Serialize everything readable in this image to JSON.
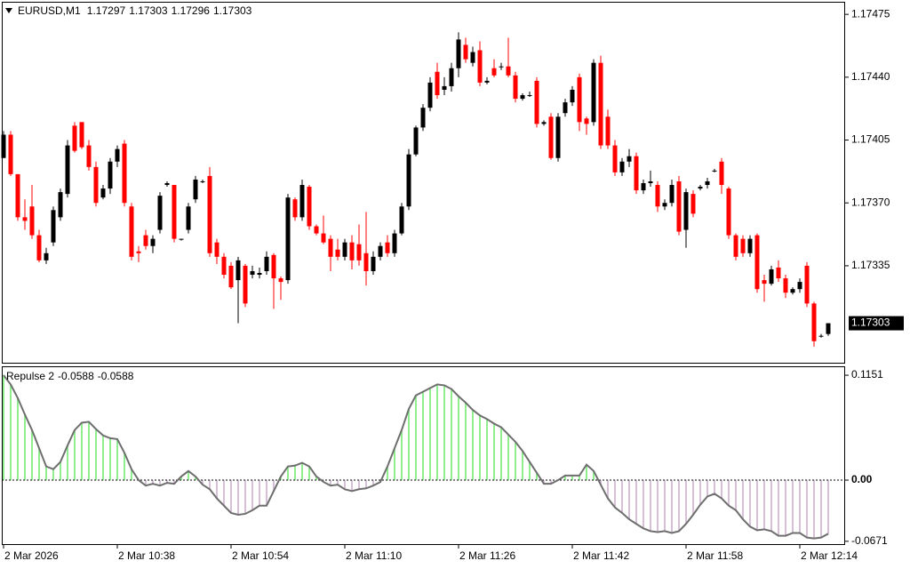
{
  "chart_data": [
    {
      "type": "candlestick",
      "symbol": "EURUSD,M1",
      "header_values": [
        1.17297,
        1.17303,
        1.17296,
        1.17303
      ],
      "bull_color": "#000000",
      "bear_color": "#ff0000",
      "current_price": 1.17303,
      "ylim": [
        1.17281,
        1.17482
      ],
      "yticks": [
        {
          "value": 1.17475,
          "label": "1.17475"
        },
        {
          "value": 1.1744,
          "label": "1.17440"
        },
        {
          "value": 1.17405,
          "label": "1.17405"
        },
        {
          "value": 1.1737,
          "label": "1.17370"
        },
        {
          "value": 1.17335,
          "label": "1.17335"
        }
      ],
      "xticks": [
        {
          "value": 0,
          "label": "2 Mar 2026"
        },
        {
          "value": 16,
          "label": "2 Mar 10:38"
        },
        {
          "value": 32,
          "label": "2 Mar 10:54"
        },
        {
          "value": 48,
          "label": "2 Mar 11:10"
        },
        {
          "value": 64,
          "label": "2 Mar 11:26"
        },
        {
          "value": 80,
          "label": "2 Mar 11:42"
        },
        {
          "value": 96,
          "label": "2 Mar 11:58"
        },
        {
          "value": 112,
          "label": "2 Mar 12:14"
        }
      ],
      "ohlc": [
        [
          1.17395,
          1.1741,
          1.17395,
          1.17408
        ],
        [
          1.17408,
          1.1741,
          1.17385,
          1.17386
        ],
        [
          1.17386,
          1.17386,
          1.1736,
          1.17362
        ],
        [
          1.17362,
          1.17372,
          1.17355,
          1.1736
        ],
        [
          1.17368,
          1.1738,
          1.1735,
          1.17352
        ],
        [
          1.17352,
          1.17355,
          1.17337,
          1.17338
        ],
        [
          1.17338,
          1.17345,
          1.17336,
          1.17342
        ],
        [
          1.17348,
          1.17368,
          1.17346,
          1.17366
        ],
        [
          1.17362,
          1.17378,
          1.1736,
          1.17376
        ],
        [
          1.17375,
          1.17405,
          1.17373,
          1.17402
        ],
        [
          1.17413,
          1.17415,
          1.17398,
          1.17399
        ],
        [
          1.17415,
          1.17415,
          1.174,
          1.17401
        ],
        [
          1.17402,
          1.17405,
          1.17388,
          1.1739
        ],
        [
          1.1739,
          1.17393,
          1.17368,
          1.1737
        ],
        [
          1.17373,
          1.1738,
          1.17372,
          1.17378
        ],
        [
          1.17378,
          1.17395,
          1.17375,
          1.17393
        ],
        [
          1.17393,
          1.17402,
          1.1739,
          1.174
        ],
        [
          1.17403,
          1.17405,
          1.17368,
          1.1737
        ],
        [
          1.17368,
          1.1737,
          1.17338,
          1.1734
        ],
        [
          1.17343,
          1.17346,
          1.17337,
          1.17342
        ],
        [
          1.17352,
          1.17355,
          1.17344,
          1.17346
        ],
        [
          1.17346,
          1.17352,
          1.17342,
          1.1735
        ],
        [
          1.17355,
          1.17376,
          1.17353,
          1.17374
        ],
        [
          1.1738,
          1.17382,
          1.17379,
          1.17381
        ],
        [
          1.1738,
          1.1738,
          1.17348,
          1.1735
        ],
        [
          1.1735,
          1.1735,
          1.17349,
          1.1735
        ],
        [
          1.17355,
          1.1737,
          1.17353,
          1.17368
        ],
        [
          1.17372,
          1.17385,
          1.1737,
          1.17383
        ],
        [
          1.17382,
          1.17383,
          1.17381,
          1.17382
        ],
        [
          1.17385,
          1.1739,
          1.1734,
          1.17342
        ],
        [
          1.17348,
          1.1735,
          1.17336,
          1.1734
        ],
        [
          1.1734,
          1.17342,
          1.17328,
          1.1733
        ],
        [
          1.17335,
          1.17337,
          1.17322,
          1.17323
        ],
        [
          1.17327,
          1.1734,
          1.17303,
          1.17338
        ],
        [
          1.17335,
          1.17336,
          1.17312,
          1.17314
        ],
        [
          1.1733,
          1.17335,
          1.17328,
          1.17332
        ],
        [
          1.1733,
          1.17334,
          1.17328,
          1.17331
        ],
        [
          1.17332,
          1.17343,
          1.1733,
          1.1734
        ],
        [
          1.17341,
          1.17342,
          1.17311,
          1.17328
        ],
        [
          1.17328,
          1.17329,
          1.17316,
          1.17326
        ],
        [
          1.17327,
          1.17375,
          1.17325,
          1.17373
        ],
        [
          1.17372,
          1.17373,
          1.1736,
          1.17362
        ],
        [
          1.17362,
          1.17383,
          1.1736,
          1.1738
        ],
        [
          1.17379,
          1.1738,
          1.17355,
          1.17357
        ],
        [
          1.17357,
          1.17358,
          1.17352,
          1.17353
        ],
        [
          1.17353,
          1.17363,
          1.17347,
          1.17348
        ],
        [
          1.1735,
          1.17352,
          1.17332,
          1.1734
        ],
        [
          1.17344,
          1.1735,
          1.17338,
          1.1734
        ],
        [
          1.1734,
          1.1735,
          1.17338,
          1.17348
        ],
        [
          1.17348,
          1.17352,
          1.17333,
          1.17338
        ],
        [
          1.17347,
          1.17358,
          1.17335,
          1.17338
        ],
        [
          1.17342,
          1.17365,
          1.17324,
          1.17332
        ],
        [
          1.17332,
          1.17343,
          1.1733,
          1.1734
        ],
        [
          1.1734,
          1.17348,
          1.17338,
          1.17346
        ],
        [
          1.17348,
          1.17352,
          1.1734,
          1.17342
        ],
        [
          1.17342,
          1.17355,
          1.1734,
          1.17353
        ],
        [
          1.17353,
          1.1737,
          1.17352,
          1.17368
        ],
        [
          1.17368,
          1.174,
          1.17366,
          1.17397
        ],
        [
          1.17397,
          1.17413,
          1.17396,
          1.17412
        ],
        [
          1.17412,
          1.17425,
          1.1741,
          1.17423
        ],
        [
          1.17423,
          1.1744,
          1.17421,
          1.17437
        ],
        [
          1.17443,
          1.17448,
          1.17428,
          1.1743
        ],
        [
          1.17433,
          1.1744,
          1.1743,
          1.17435
        ],
        [
          1.17435,
          1.17448,
          1.17432,
          1.17445
        ],
        [
          1.17445,
          1.17465,
          1.1744,
          1.17461
        ],
        [
          1.17458,
          1.17462,
          1.17448,
          1.1745
        ],
        [
          1.17448,
          1.17457,
          1.17446,
          1.17454
        ],
        [
          1.17455,
          1.1746,
          1.17435,
          1.17437
        ],
        [
          1.17437,
          1.1744,
          1.17436,
          1.17438
        ],
        [
          1.17445,
          1.1745,
          1.1744,
          1.17441
        ],
        [
          1.17446,
          1.17448,
          1.17444,
          1.17446
        ],
        [
          1.17446,
          1.17462,
          1.1744,
          1.17441
        ],
        [
          1.17441,
          1.17443,
          1.17426,
          1.17428
        ],
        [
          1.17428,
          1.17431,
          1.17427,
          1.1743
        ],
        [
          1.1743,
          1.17432,
          1.17429,
          1.1743
        ],
        [
          1.17438,
          1.1744,
          1.17412,
          1.17414
        ],
        [
          1.17414,
          1.17416,
          1.17413,
          1.17415
        ],
        [
          1.17418,
          1.1742,
          1.17394,
          1.17395
        ],
        [
          1.17395,
          1.1742,
          1.17393,
          1.17418
        ],
        [
          1.1742,
          1.17428,
          1.17418,
          1.17426
        ],
        [
          1.17426,
          1.17435,
          1.17424,
          1.17433
        ],
        [
          1.1744,
          1.17442,
          1.1741,
          1.17415
        ],
        [
          1.17417,
          1.17418,
          1.17408,
          1.17414
        ],
        [
          1.17415,
          1.1745,
          1.17413,
          1.17448
        ],
        [
          1.17448,
          1.17452,
          1.174,
          1.17402
        ],
        [
          1.17418,
          1.17422,
          1.174,
          1.17402
        ],
        [
          1.17402,
          1.17405,
          1.17385,
          1.17387
        ],
        [
          1.17387,
          1.17395,
          1.17385,
          1.17393
        ],
        [
          1.17393,
          1.174,
          1.1739,
          1.17396
        ],
        [
          1.17396,
          1.17398,
          1.17375,
          1.17377
        ],
        [
          1.17377,
          1.17383,
          1.17375,
          1.17381
        ],
        [
          1.17381,
          1.17388,
          1.17379,
          1.17382
        ],
        [
          1.1738,
          1.17382,
          1.17365,
          1.17368
        ],
        [
          1.17368,
          1.17372,
          1.17366,
          1.1737
        ],
        [
          1.1737,
          1.17383,
          1.17368,
          1.1738
        ],
        [
          1.17382,
          1.17385,
          1.17352,
          1.17354
        ],
        [
          1.17355,
          1.17378,
          1.17345,
          1.17376
        ],
        [
          1.17375,
          1.17377,
          1.17362,
          1.17364
        ],
        [
          1.17378,
          1.1738,
          1.17377,
          1.17379
        ],
        [
          1.1738,
          1.17384,
          1.17378,
          1.17382
        ],
        [
          1.17388,
          1.17389,
          1.17387,
          1.17388
        ],
        [
          1.17393,
          1.17395,
          1.17375,
          1.1738
        ],
        [
          1.17378,
          1.17379,
          1.1735,
          1.17352
        ],
        [
          1.17352,
          1.17353,
          1.17338,
          1.1734
        ],
        [
          1.1735,
          1.17352,
          1.1734,
          1.17342
        ],
        [
          1.17342,
          1.17352,
          1.1734,
          1.1735
        ],
        [
          1.17352,
          1.17353,
          1.1732,
          1.17322
        ],
        [
          1.17327,
          1.1733,
          1.17315,
          1.17325
        ],
        [
          1.17325,
          1.17335,
          1.17324,
          1.17333
        ],
        [
          1.17334,
          1.17338,
          1.17326,
          1.17328
        ],
        [
          1.17328,
          1.1733,
          1.17317,
          1.1732
        ],
        [
          1.1732,
          1.17323,
          1.17319,
          1.17322
        ],
        [
          1.17322,
          1.17328,
          1.1732,
          1.17326
        ],
        [
          1.17335,
          1.17337,
          1.17312,
          1.17314
        ],
        [
          1.17314,
          1.17315,
          1.1729,
          1.17293
        ],
        [
          1.17296,
          1.17297,
          1.17295,
          1.17296
        ],
        [
          1.17297,
          1.17303,
          1.17296,
          1.17303
        ]
      ]
    },
    {
      "type": "histogram",
      "name": "Repulse 2",
      "header_values": [
        -0.0588,
        -0.0588
      ],
      "positive_color": "#90ee90",
      "negative_color": "#d8bfd8",
      "line_color": "#6e6e6e",
      "ylim": [
        -0.0702,
        0.1249
      ],
      "yticks": [
        0.1151,
        {
          "value": 0,
          "label": "0.00"
        },
        -0.0671
      ],
      "levels": [
        0
      ],
      "values": [
        0.1151,
        0.105,
        0.09,
        0.072,
        0.055,
        0.035,
        0.015,
        0.012,
        0.02,
        0.038,
        0.055,
        0.063,
        0.064,
        0.056,
        0.049,
        0.046,
        0.045,
        0.03,
        0.012,
        0.0,
        -0.006,
        -0.004,
        -0.006,
        -0.003,
        -0.004,
        0.004,
        0.01,
        0.004,
        -0.005,
        -0.01,
        -0.02,
        -0.028,
        -0.036,
        -0.038,
        -0.037,
        -0.033,
        -0.028,
        -0.028,
        -0.012,
        0.004,
        0.015,
        0.016,
        0.019,
        0.015,
        0.004,
        -0.002,
        -0.006,
        -0.005,
        -0.01,
        -0.012,
        -0.01,
        -0.009,
        -0.006,
        -0.002,
        0.015,
        0.035,
        0.055,
        0.078,
        0.093,
        0.097,
        0.101,
        0.105,
        0.104,
        0.1,
        0.092,
        0.085,
        0.077,
        0.071,
        0.067,
        0.062,
        0.058,
        0.05,
        0.042,
        0.032,
        0.02,
        0.008,
        -0.004,
        -0.004,
        0.0,
        0.005,
        0.005,
        0.005,
        0.017,
        0.01,
        -0.005,
        -0.02,
        -0.03,
        -0.036,
        -0.043,
        -0.048,
        -0.053,
        -0.056,
        -0.057,
        -0.056,
        -0.058,
        -0.056,
        -0.048,
        -0.038,
        -0.027,
        -0.018,
        -0.015,
        -0.02,
        -0.028,
        -0.033,
        -0.043,
        -0.051,
        -0.055,
        -0.054,
        -0.056,
        -0.061,
        -0.061,
        -0.058,
        -0.058,
        -0.063,
        -0.064,
        -0.063,
        -0.0588
      ]
    }
  ]
}
